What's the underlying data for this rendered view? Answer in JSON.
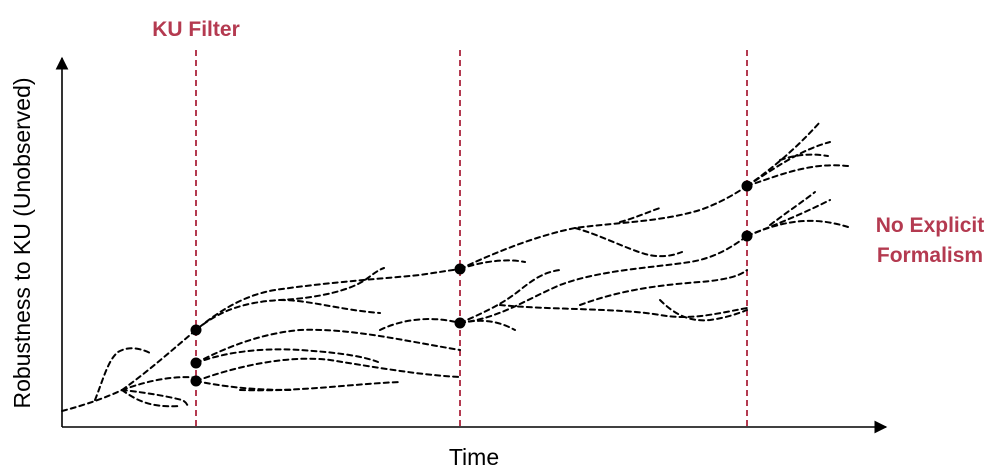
{
  "labels": {
    "filter": "KU Filter",
    "no_formalism_line1": "No Explicit",
    "no_formalism_line2": "Formalism",
    "x_axis": "Time",
    "y_axis": "Robustness to KU (Unobserved)"
  },
  "colors": {
    "accent": "#b43a50",
    "ink": "#000000",
    "background": "#ffffff"
  }
}
